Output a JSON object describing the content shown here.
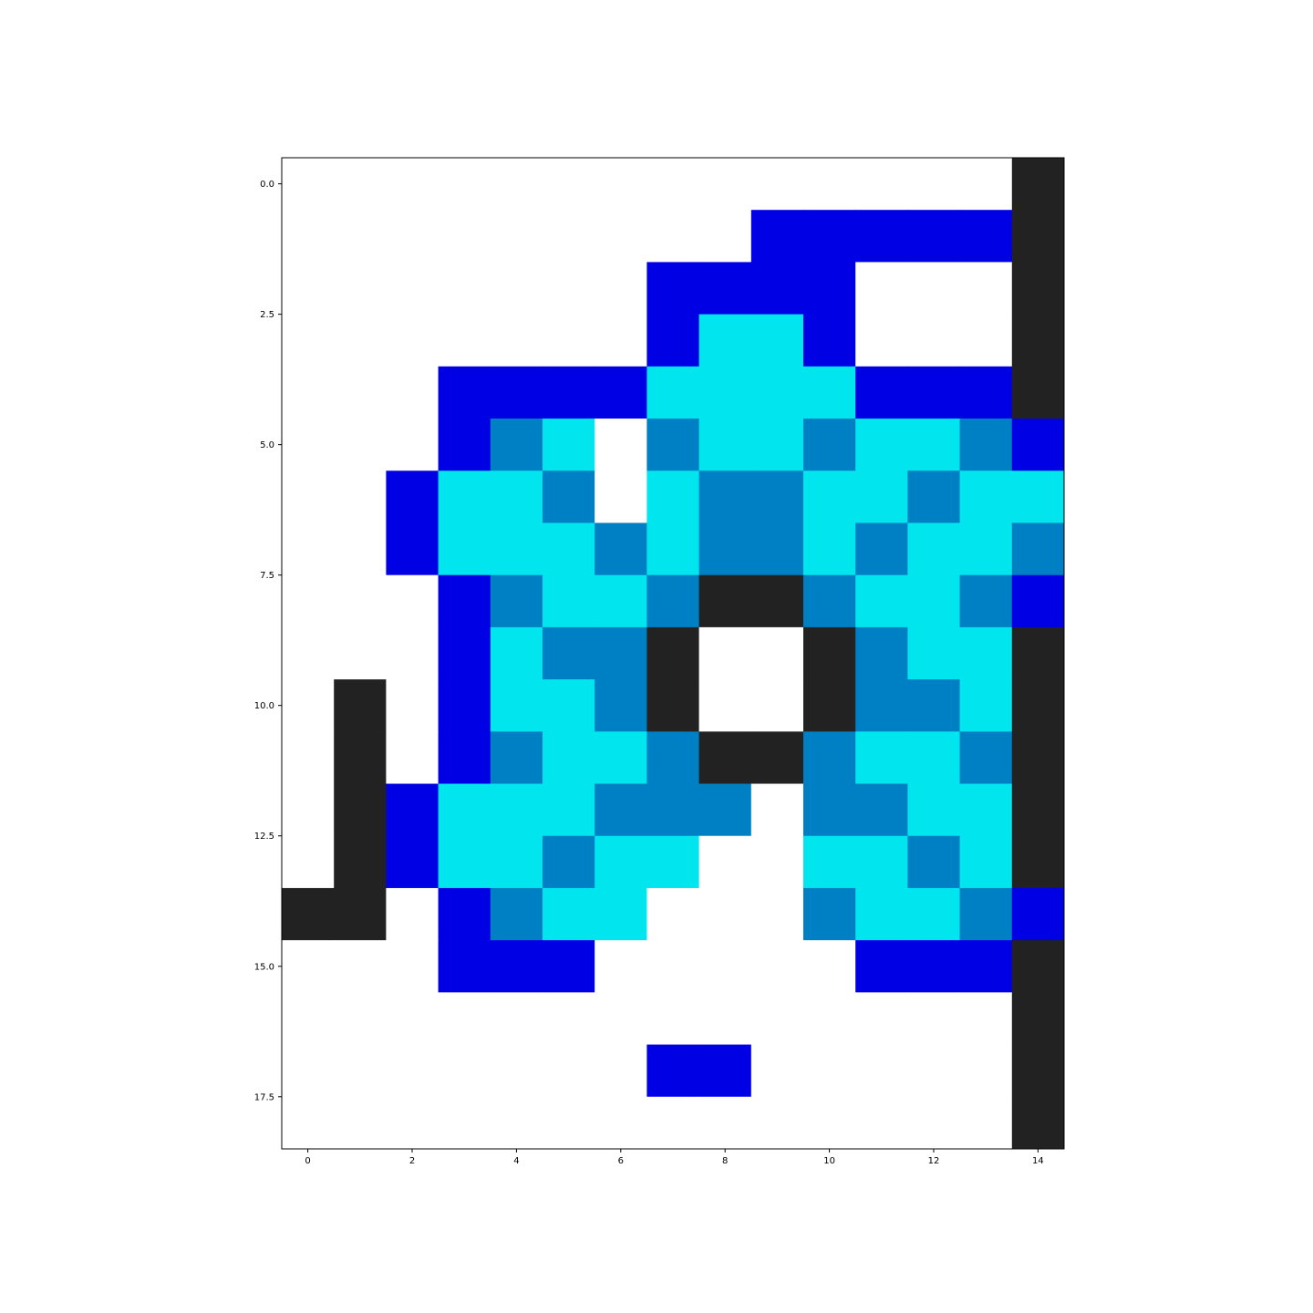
{
  "chart_data": {
    "type": "heatmap",
    "title": "",
    "xlabel": "",
    "ylabel": "",
    "xlim": [
      -0.5,
      14.5
    ],
    "ylim": [
      18.5,
      -0.5
    ],
    "grid": false,
    "x_ticks": [
      "0",
      "2",
      "4",
      "6",
      "8",
      "10",
      "12",
      "14"
    ],
    "x_tick_values": [
      0,
      2,
      4,
      6,
      8,
      10,
      12,
      14
    ],
    "y_ticks": [
      "0.0",
      "2.5",
      "5.0",
      "7.5",
      "10.0",
      "12.5",
      "15.0",
      "17.5"
    ],
    "y_tick_values": [
      0,
      2.5,
      5,
      7.5,
      10,
      12.5,
      15,
      17.5
    ],
    "palette": {
      "0": "#ffffff",
      "1": "#0000e5",
      "2": "#00e5ee",
      "3": "#0080c4",
      "4": "#222222"
    },
    "rows": [
      [
        0,
        0,
        0,
        0,
        0,
        0,
        0,
        0,
        0,
        0,
        0,
        0,
        0,
        0,
        4
      ],
      [
        0,
        0,
        0,
        0,
        0,
        0,
        0,
        0,
        0,
        1,
        1,
        1,
        1,
        1,
        4
      ],
      [
        0,
        0,
        0,
        0,
        0,
        0,
        0,
        1,
        1,
        1,
        1,
        0,
        0,
        0,
        4
      ],
      [
        0,
        0,
        0,
        0,
        0,
        0,
        0,
        1,
        2,
        2,
        1,
        0,
        0,
        0,
        4
      ],
      [
        0,
        0,
        0,
        1,
        1,
        1,
        1,
        2,
        2,
        2,
        2,
        1,
        1,
        1,
        4
      ],
      [
        0,
        0,
        0,
        1,
        3,
        2,
        0,
        3,
        2,
        2,
        3,
        2,
        2,
        3,
        1
      ],
      [
        0,
        0,
        1,
        2,
        2,
        3,
        0,
        2,
        3,
        3,
        2,
        2,
        3,
        2,
        2
      ],
      [
        0,
        0,
        1,
        2,
        2,
        2,
        3,
        2,
        3,
        3,
        2,
        3,
        2,
        2,
        3
      ],
      [
        0,
        0,
        0,
        1,
        3,
        2,
        2,
        3,
        4,
        4,
        3,
        2,
        2,
        3,
        1
      ],
      [
        0,
        0,
        0,
        1,
        2,
        3,
        3,
        4,
        0,
        0,
        4,
        3,
        2,
        2,
        4
      ],
      [
        0,
        4,
        0,
        1,
        2,
        2,
        3,
        4,
        0,
        0,
        4,
        3,
        3,
        2,
        4
      ],
      [
        0,
        4,
        0,
        1,
        3,
        2,
        2,
        3,
        4,
        4,
        3,
        2,
        2,
        3,
        4
      ],
      [
        0,
        4,
        1,
        2,
        2,
        2,
        3,
        3,
        3,
        0,
        3,
        3,
        2,
        2,
        4
      ],
      [
        0,
        4,
        1,
        2,
        2,
        3,
        2,
        2,
        0,
        0,
        2,
        2,
        3,
        2,
        4
      ],
      [
        4,
        4,
        0,
        1,
        3,
        2,
        2,
        0,
        0,
        0,
        3,
        2,
        2,
        3,
        1
      ],
      [
        0,
        0,
        0,
        1,
        1,
        1,
        0,
        0,
        0,
        0,
        0,
        1,
        1,
        1,
        4
      ],
      [
        0,
        0,
        0,
        0,
        0,
        0,
        0,
        0,
        0,
        0,
        0,
        0,
        0,
        0,
        4
      ],
      [
        0,
        0,
        0,
        0,
        0,
        0,
        0,
        1,
        1,
        0,
        0,
        0,
        0,
        0,
        4
      ],
      [
        0,
        0,
        0,
        0,
        0,
        0,
        0,
        0,
        0,
        0,
        0,
        0,
        0,
        0,
        4
      ]
    ]
  }
}
